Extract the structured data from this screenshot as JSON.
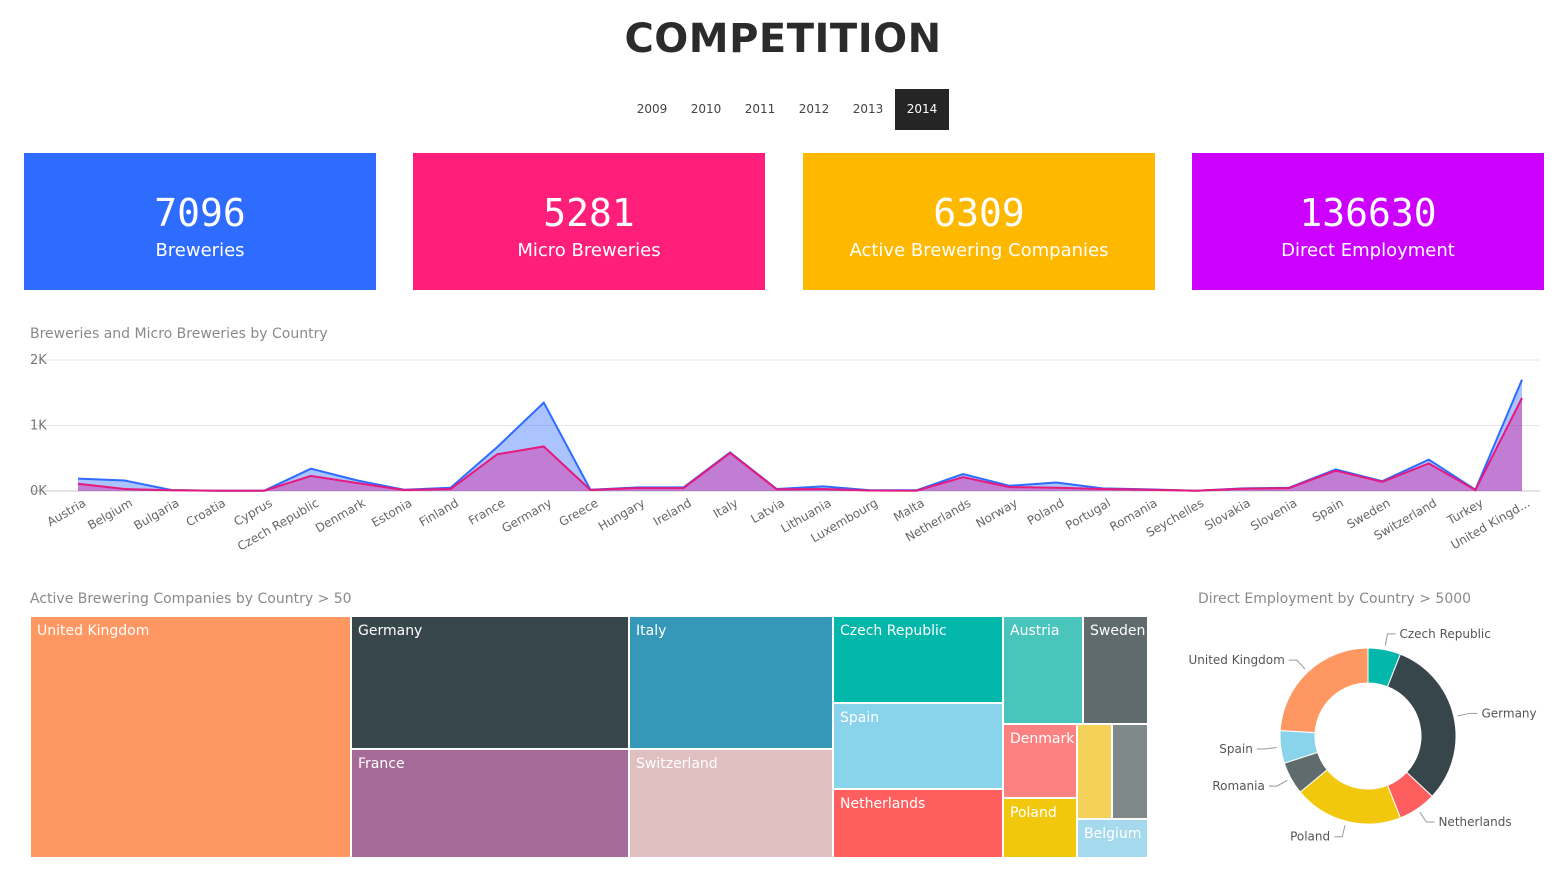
{
  "page": {
    "title": "COMPETITION"
  },
  "years": [
    "2009",
    "2010",
    "2011",
    "2012",
    "2013",
    "2014"
  ],
  "selected_year": "2014",
  "kpis": [
    {
      "value": "7096",
      "label": "Breweries",
      "color": "#2e6bff"
    },
    {
      "value": "5281",
      "label": "Micro Breweries",
      "color": "#ff1f7a"
    },
    {
      "value": "6309",
      "label": "Active Brewering Companies",
      "color": "#ffb800"
    },
    {
      "value": "136630",
      "label": "Direct Employment",
      "color": "#cc00ff"
    }
  ],
  "chart_data": [
    {
      "type": "area",
      "title": "Breweries and Micro Breweries by Country",
      "categories": [
        "Austria",
        "Belgium",
        "Bulgaria",
        "Croatia",
        "Cyprus",
        "Czech Republic",
        "Denmark",
        "Estonia",
        "Finland",
        "France",
        "Germany",
        "Greece",
        "Hungary",
        "Ireland",
        "Italy",
        "Latvia",
        "Lithuania",
        "Luxembourg",
        "Malta",
        "Netherlands",
        "Norway",
        "Poland",
        "Portugal",
        "Romania",
        "Seychelles",
        "Slovakia",
        "Slovenia",
        "Spain",
        "Sweden",
        "Switzerland",
        "Turkey",
        "United Kingd..."
      ],
      "series": [
        {
          "values": [
            190,
            160,
            15,
            5,
            5,
            340,
            160,
            20,
            50,
            670,
            1350,
            20,
            55,
            55,
            590,
            30,
            70,
            10,
            10,
            260,
            80,
            130,
            40,
            25,
            5,
            40,
            50,
            330,
            150,
            480,
            20,
            1700
          ],
          "color": "#2e6bff"
        },
        {
          "values": [
            110,
            30,
            10,
            5,
            5,
            230,
            120,
            15,
            30,
            560,
            680,
            15,
            45,
            45,
            580,
            25,
            30,
            8,
            5,
            210,
            60,
            50,
            30,
            20,
            5,
            35,
            45,
            310,
            140,
            420,
            15,
            1420
          ],
          "color": "#e6197d"
        }
      ],
      "ylim": [
        0,
        2000
      ],
      "yticks": [
        "0K",
        "1K",
        "2K"
      ],
      "grid": true
    },
    {
      "type": "treemap",
      "title": "Active Brewering Companies by Country > 50",
      "labels": [
        "United Kingdom",
        "Germany",
        "France",
        "Italy",
        "Switzerland",
        "Czech Republic",
        "Spain",
        "Netherlands",
        "Austria",
        "Sweden",
        "Denmark",
        "Poland",
        "Belgium"
      ],
      "colors": {
        "United Kingdom": "#ff9762",
        "Germany": "#37464b",
        "France": "#a56a97",
        "Italy": "#3598b8",
        "Switzerland": "#dfbfbf",
        "Czech Republic": "#03b8aa",
        "Spain": "#8ad4eb",
        "Netherlands": "#fe5f5e",
        "Austria": "#4ac5bb",
        "Sweden": "#5f6b6d",
        "Denmark": "#fb8280",
        "Poland": "#f2c80f",
        "Belgium": "#a5d9ee",
        "unlabeled_1": "#f4d25a",
        "unlabeled_2": "#7f898a"
      }
    },
    {
      "type": "pie",
      "title": "Direct Employment by Country > 5000",
      "labels": [
        "Czech Republic",
        "Germany",
        "Netherlands",
        "Poland",
        "Romania",
        "Spain",
        "United Kingdom"
      ],
      "values": [
        6,
        31,
        7,
        20,
        6,
        6,
        24
      ],
      "colors": [
        "#03b8aa",
        "#37464b",
        "#fe5f5e",
        "#f2c80f",
        "#5f6b6d",
        "#8ad4eb",
        "#ff9762"
      ]
    }
  ]
}
